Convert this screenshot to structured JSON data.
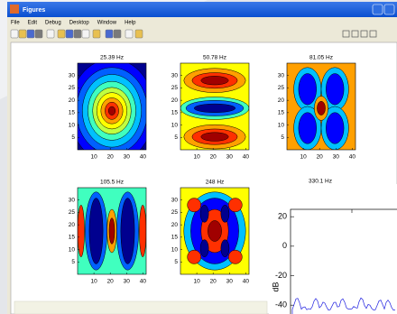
{
  "window": {
    "title": "Figures",
    "menu": [
      "File",
      "Edit",
      "Debug",
      "Desktop",
      "Window",
      "Help"
    ]
  },
  "plots": [
    {
      "title": "25.39 Hz",
      "xlim": [
        0,
        42
      ],
      "ylim": [
        0,
        35
      ],
      "xticks": [
        10,
        20,
        30,
        40
      ],
      "yticks": [
        5,
        10,
        15,
        20,
        25,
        30
      ]
    },
    {
      "title": "50.78 Hz",
      "xlim": [
        0,
        42
      ],
      "ylim": [
        0,
        35
      ],
      "xticks": [
        10,
        20,
        30,
        40
      ],
      "yticks": [
        5,
        10,
        15,
        20,
        25,
        30
      ]
    },
    {
      "title": "81.05 Hz",
      "xlim": [
        0,
        42
      ],
      "ylim": [
        0,
        35
      ],
      "xticks": [
        10,
        20,
        30,
        40
      ],
      "yticks": [
        5,
        10,
        15,
        20,
        25,
        30
      ]
    },
    {
      "title": "105.5 Hz",
      "xlim": [
        0,
        42
      ],
      "ylim": [
        0,
        35
      ],
      "xticks": [
        10,
        20,
        30,
        40
      ],
      "yticks": [
        5,
        10,
        15,
        20,
        25,
        30
      ]
    },
    {
      "title": "248 Hz",
      "xlim": [
        0,
        42
      ],
      "ylim": [
        0,
        35
      ],
      "xticks": [
        10,
        20,
        30,
        40
      ],
      "yticks": [
        5,
        10,
        15,
        20,
        25,
        30
      ]
    },
    {
      "title": "330.1 Hz"
    }
  ],
  "spectrum": {
    "ylabel": "dB",
    "ylim": [
      -46,
      25
    ],
    "yticks": [
      20,
      0,
      -20,
      -40
    ]
  }
}
